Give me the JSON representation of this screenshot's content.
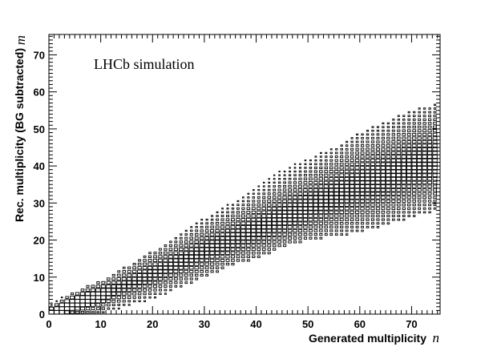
{
  "chart_data": {
    "type": "heatmap",
    "title": "",
    "annotation": "LHCb simulation",
    "xlabel": "Generated multiplicity",
    "xlabel_var": "n",
    "ylabel": "Rec. multiplicity (BG subtracted)",
    "ylabel_var": "m",
    "xlim": [
      0,
      75.5
    ],
    "ylim": [
      0,
      75.5
    ],
    "x_ticks": [
      0,
      10,
      20,
      30,
      40,
      50,
      60,
      70
    ],
    "y_ticks": [
      0,
      10,
      20,
      30,
      40,
      50,
      60,
      70
    ],
    "bin_width": 1,
    "grid": false,
    "distribution": {
      "description_of_band": "filled bins between lower and upper edge; box size proportional to content",
      "upper_edge": [
        [
          0,
          3
        ],
        [
          5,
          6
        ],
        [
          10,
          9
        ],
        [
          15,
          13
        ],
        [
          20,
          17
        ],
        [
          25,
          21
        ],
        [
          30,
          26
        ],
        [
          35,
          30
        ],
        [
          40,
          34
        ],
        [
          45,
          39
        ],
        [
          50,
          42
        ],
        [
          55,
          45
        ],
        [
          60,
          49
        ],
        [
          65,
          52
        ],
        [
          70,
          55
        ],
        [
          75,
          57
        ]
      ],
      "lower_edge": [
        [
          0,
          0
        ],
        [
          5,
          0
        ],
        [
          10,
          0
        ],
        [
          15,
          2
        ],
        [
          20,
          4
        ],
        [
          25,
          7
        ],
        [
          30,
          10
        ],
        [
          35,
          13
        ],
        [
          40,
          15
        ],
        [
          45,
          18
        ],
        [
          50,
          20
        ],
        [
          55,
          21
        ],
        [
          60,
          22
        ],
        [
          65,
          24
        ],
        [
          70,
          26
        ],
        [
          75,
          28
        ]
      ],
      "peak_ridge": [
        [
          0,
          0
        ],
        [
          5,
          3
        ],
        [
          10,
          5
        ],
        [
          15,
          8
        ],
        [
          20,
          11
        ],
        [
          25,
          14
        ],
        [
          30,
          17
        ],
        [
          35,
          20
        ],
        [
          40,
          23
        ],
        [
          45,
          26
        ],
        [
          50,
          29
        ],
        [
          55,
          32
        ],
        [
          60,
          35
        ],
        [
          65,
          37
        ],
        [
          70,
          40
        ],
        [
          75,
          42
        ]
      ]
    }
  }
}
